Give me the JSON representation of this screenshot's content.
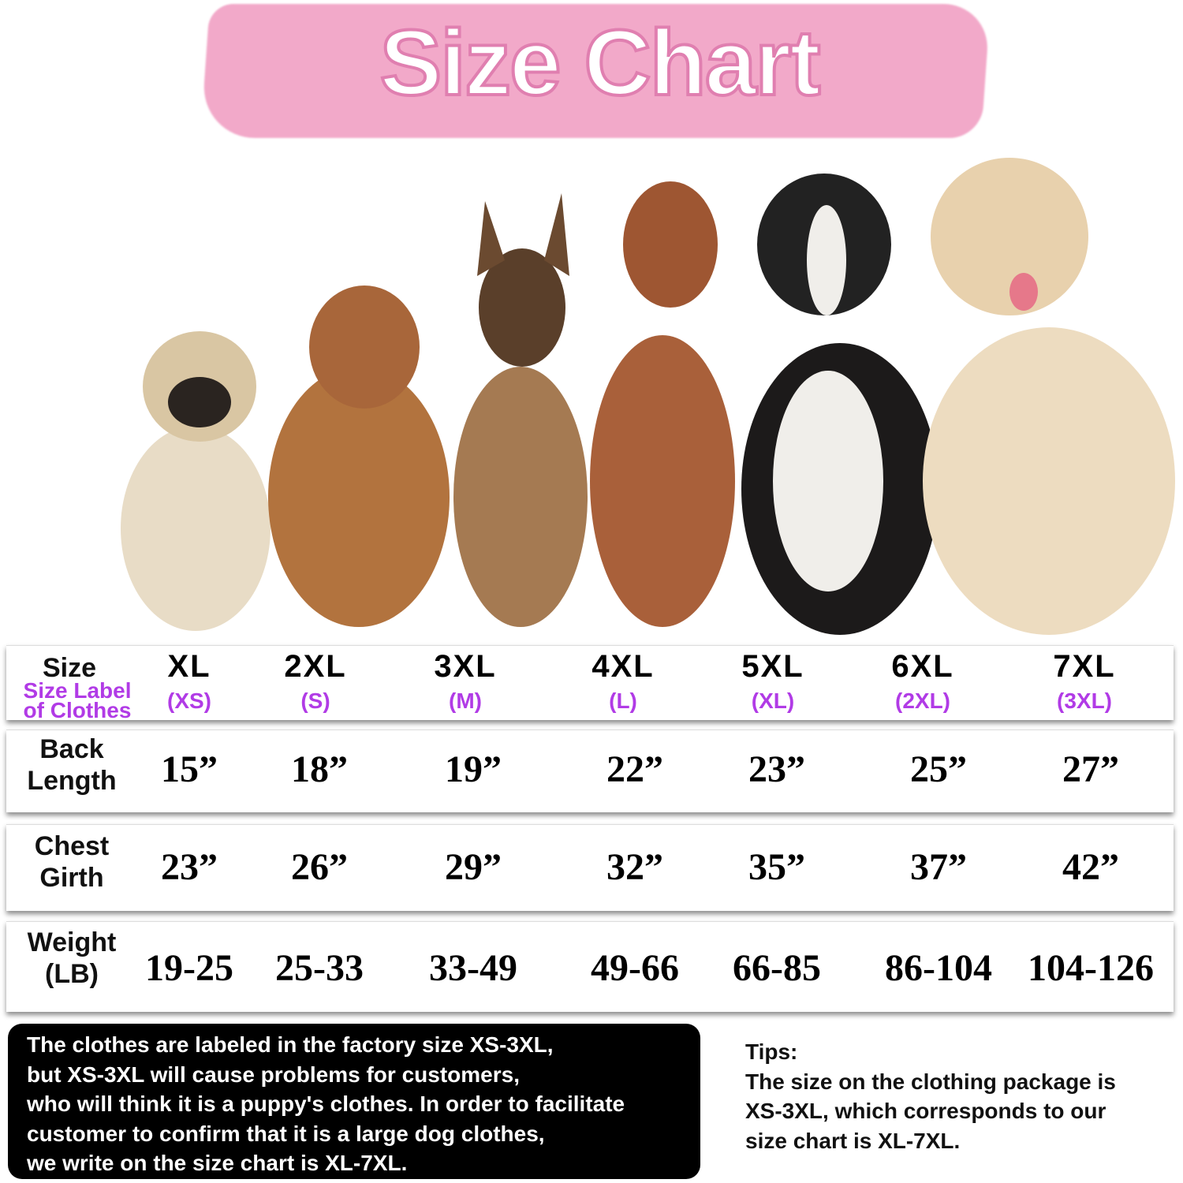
{
  "title": "Size Chart",
  "colors": {
    "brush": "#f2a9c9",
    "accent_purple": "#b13be6",
    "note_bg": "#000000"
  },
  "dogs": [
    "pug",
    "cocker-spaniel",
    "malinois",
    "vizsla",
    "border-collie",
    "golden-retriever"
  ],
  "table": {
    "header": {
      "label": "Size",
      "sublabel_1": "Size Label",
      "sublabel_2": "of Clothes",
      "sizes": [
        "XL",
        "2XL",
        "3XL",
        "4XL",
        "5XL",
        "6XL",
        "7XL"
      ],
      "clothes_labels": [
        "(XS)",
        "(S)",
        "(M)",
        "(L)",
        "(XL)",
        "(2XL)",
        "(3XL)"
      ]
    },
    "rows": [
      {
        "label_1": "Back",
        "label_2": "Length",
        "values": [
          "15”",
          "18”",
          "19”",
          "22”",
          "23”",
          "25”",
          "27”"
        ]
      },
      {
        "label_1": "Chest",
        "label_2": "Girth",
        "values": [
          "23”",
          "26”",
          "29”",
          "32”",
          "35”",
          "37”",
          "42”"
        ]
      },
      {
        "label_1": "Weight",
        "label_2": "(LB)",
        "values": [
          "19-25",
          "25-33",
          "33-49",
          "49-66",
          "66-85",
          "86-104",
          "104-126"
        ]
      }
    ]
  },
  "note": [
    "The clothes are labeled in the factory size XS-3XL,",
    "but XS-3XL will cause problems for customers,",
    "who will think it is a puppy's clothes. In order to facilitate",
    "customer to confirm that it is a large dog clothes,",
    "we write on the size chart is XL-7XL."
  ],
  "tips": {
    "heading": "Tips:",
    "lines": [
      "The size on the clothing package is",
      "XS-3XL, which corresponds to our",
      "size chart is XL-7XL."
    ]
  }
}
